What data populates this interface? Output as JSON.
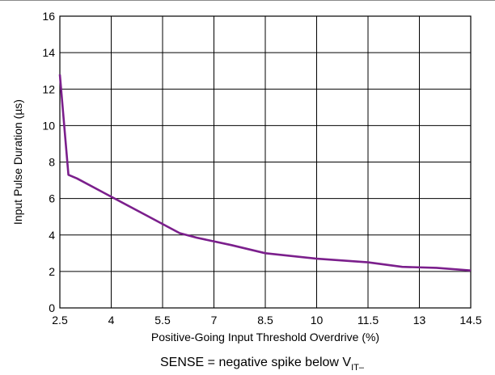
{
  "chart_data": {
    "type": "line",
    "xlabel": "Positive-Going Input Threshold Overdrive (%)",
    "ylabel": "Input Pulse Duration (µs)",
    "caption": {
      "main": "SENSE = negative spike below V",
      "subscript": "IT–"
    },
    "x_ticks": [
      "2.5",
      "4",
      "5.5",
      "7",
      "8.5",
      "10",
      "11.5",
      "13",
      "14.5"
    ],
    "y_ticks": [
      "0",
      "2",
      "4",
      "6",
      "8",
      "10",
      "12",
      "14",
      "16"
    ],
    "xlim": [
      2.5,
      14.5
    ],
    "ylim": [
      0,
      16
    ],
    "grid": true,
    "line_color": "#7b1f8c",
    "series": [
      {
        "x": [
          2.5,
          2.75,
          3.0,
          4.0,
          5.0,
          6.0,
          6.5,
          7.5,
          8.5,
          10.0,
          11.5,
          12.5,
          13.5,
          14.5
        ],
        "y": [
          12.8,
          7.3,
          7.1,
          6.1,
          5.1,
          4.1,
          3.85,
          3.45,
          3.0,
          2.7,
          2.5,
          2.25,
          2.2,
          2.05
        ]
      }
    ]
  }
}
